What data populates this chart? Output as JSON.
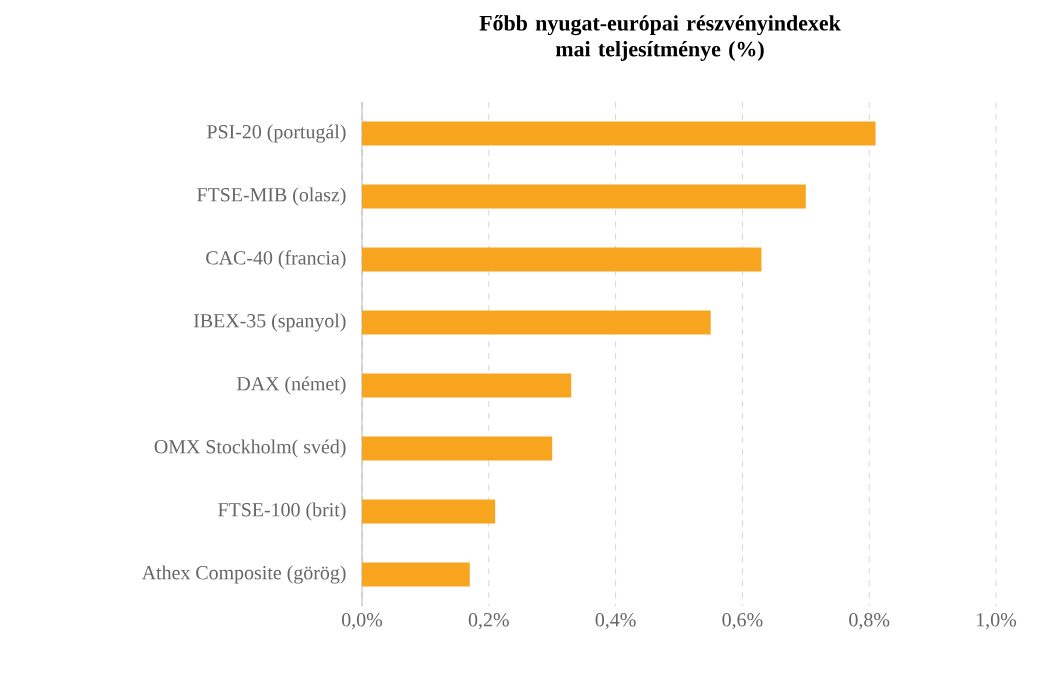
{
  "chart_data": {
    "type": "bar",
    "orientation": "horizontal",
    "title": "Főbb nyugat-európai részvényindexek mai teljesítménye (%)",
    "categories": [
      "PSI-20 (portugál)",
      "FTSE-MIB (olasz)",
      "CAC-40 (francia)",
      "IBEX-35 (spanyol)",
      "DAX (német)",
      "OMX Stockholm( svéd)",
      "FTSE-100 (brit)",
      "Athex Composite (görög)"
    ],
    "values": [
      0.81,
      0.7,
      0.63,
      0.55,
      0.33,
      0.3,
      0.21,
      0.17
    ],
    "color": "#f7a51e",
    "xlim": [
      0,
      1.0
    ],
    "xticks": [
      {
        "value": 0,
        "label": "0,0%"
      },
      {
        "value": 0.2,
        "label": "0,2%"
      },
      {
        "value": 0.4,
        "label": "0,4%"
      },
      {
        "value": 0.6,
        "label": "0,6%"
      },
      {
        "value": 0.8,
        "label": "0,8%"
      },
      {
        "value": 1.0,
        "label": "1,0%"
      }
    ],
    "grid": "x"
  }
}
